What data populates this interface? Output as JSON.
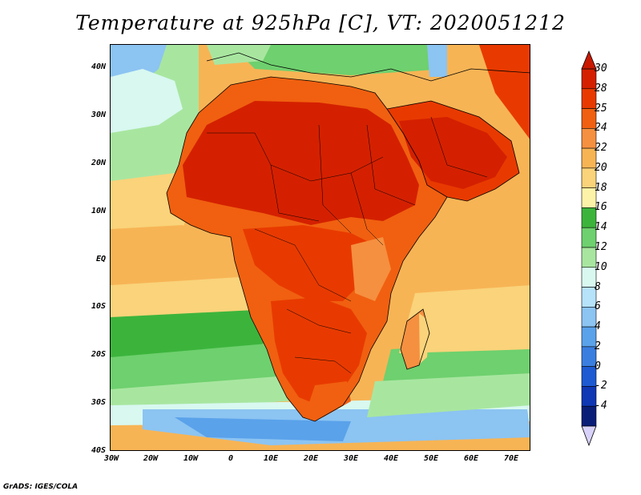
{
  "title": "Temperature at 925hPa [C], VT: 2020051212",
  "footer": "GrADS: IGES/COLA",
  "lat_labels": [
    "40N",
    "30N",
    "20N",
    "10N",
    "EQ",
    "10S",
    "20S",
    "30S",
    "40S"
  ],
  "lon_labels": [
    "30W",
    "20W",
    "10W",
    "0",
    "10E",
    "20E",
    "30E",
    "40E",
    "50E",
    "60E",
    "70E"
  ],
  "legend": {
    "labels": [
      "30",
      "28",
      "25",
      "24",
      "22",
      "20",
      "18",
      "16",
      "14",
      "12",
      "10",
      "8",
      "6",
      "4",
      "2",
      "0",
      "-2",
      "-4"
    ],
    "colors": [
      "#d42000",
      "#e83a00",
      "#f06010",
      "#f59040",
      "#f7b455",
      "#fad37a",
      "#fdf3a8",
      "#3cb43c",
      "#6ed06e",
      "#a8e6a0",
      "#d8f8f0",
      "#b6e2fa",
      "#8cc4f2",
      "#5aa2ea",
      "#3a7ee0",
      "#1e5ad2",
      "#1037b4",
      "#0a1e78"
    ],
    "top_arrow_color": "#c81800",
    "bottom_arrow_color": "#d8d2fa"
  },
  "palette": {
    "ocean_cold": "#5aa2ea",
    "ocean_cool": "#8cc4f2",
    "ocean_mild": "#a8e6a0",
    "ocean_green": "#6ed06e",
    "ocean_warm": "#fad37a",
    "ocean_warmer": "#f7b455",
    "land_hot": "#d42000",
    "land_warm": "#e83a00",
    "land_mild": "#f06010",
    "highland": "#f59040"
  }
}
